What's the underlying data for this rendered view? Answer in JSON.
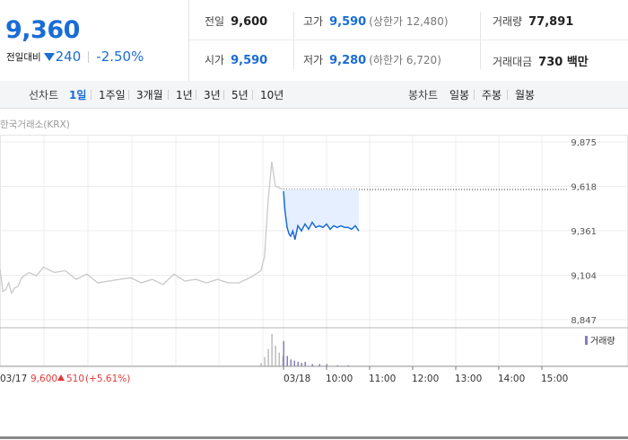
{
  "quote": {
    "price": "9,360",
    "change_label": "전일대비",
    "change_amount": "240",
    "change_rate": "-2.50%",
    "prev_close_label": "전일",
    "prev_close": "9,600",
    "high_label": "고가",
    "high": "9,590",
    "upper_limit": "(상한가 12,480)",
    "volume_label": "거래량",
    "volume": "77,891",
    "open_label": "시가",
    "open": "9,590",
    "low_label": "저가",
    "low": "9,280",
    "lower_limit": "(하한가 6,720)",
    "value_label": "거래대금",
    "value": "730 백만"
  },
  "period_bar": {
    "line_label": "선차트",
    "line_periods": [
      "1일",
      "1주일",
      "3개월",
      "1년",
      "3년",
      "5년",
      "10년"
    ],
    "active_period": "1일",
    "candle_label": "봉차트",
    "candle_periods": [
      "일봉",
      "주봉",
      "월봉"
    ]
  },
  "exchange": "한국거래소(KRX)",
  "colors": {
    "accent_blue": "#1a6cd6",
    "down": "#1a6cd6",
    "up": "#e03a3a",
    "history_line": "#c9c9c9",
    "fill": "#e6efff",
    "volume_purple": "#8a7bbf"
  },
  "chart_data": {
    "type": "line",
    "ylim": [
      8847,
      9875
    ],
    "yticks": [
      "9,875",
      "9,618",
      "9,361",
      "9,104",
      "8,847"
    ],
    "reference_line": 9600,
    "series": [
      {
        "role": "previous_day",
        "x": [
          "09:00",
          "09:04",
          "09:08",
          "09:12",
          "09:16",
          "09:20",
          "09:25",
          "09:30",
          "09:40",
          "09:50",
          "10:00",
          "10:15",
          "10:30",
          "10:45",
          "11:00",
          "11:15",
          "11:30",
          "11:45",
          "12:00",
          "12:15",
          "12:30",
          "12:45",
          "13:00",
          "13:15",
          "13:30",
          "13:45",
          "14:00",
          "14:15",
          "14:30",
          "14:45",
          "15:00",
          "15:05",
          "15:10",
          "15:15",
          "15:20",
          "15:25",
          "15:30"
        ],
        "values": [
          9140,
          9010,
          9020,
          9060,
          9000,
          9030,
          9040,
          9090,
          9120,
          9100,
          9150,
          9120,
          9130,
          9080,
          9110,
          9060,
          9070,
          9080,
          9090,
          9060,
          9080,
          9050,
          9110,
          9070,
          9080,
          9060,
          9080,
          9060,
          9060,
          9090,
          9130,
          9210,
          9530,
          9760,
          9620,
          9610,
          9600
        ]
      },
      {
        "role": "today",
        "x": [
          "09:00",
          "09:02",
          "09:05",
          "09:08",
          "09:10",
          "09:13",
          "09:16",
          "09:20",
          "09:25",
          "09:30",
          "09:35",
          "09:40",
          "09:45",
          "09:50",
          "09:55",
          "10:00",
          "10:05",
          "10:10",
          "10:15",
          "10:20",
          "10:25",
          "10:30",
          "10:35",
          "10:40",
          "10:45"
        ],
        "values": [
          9590,
          9480,
          9380,
          9340,
          9330,
          9360,
          9310,
          9390,
          9360,
          9400,
          9370,
          9410,
          9380,
          9390,
          9380,
          9400,
          9370,
          9390,
          9380,
          9390,
          9380,
          9380,
          9370,
          9390,
          9360
        ]
      }
    ],
    "volume_label": "거래량",
    "volume_x": [
      "15:00",
      "15:05",
      "15:10",
      "15:15",
      "15:20",
      "15:25",
      "15:30",
      "09:00",
      "09:05",
      "09:10",
      "09:15",
      "09:20",
      "09:25",
      "09:30",
      "09:40",
      "09:50",
      "10:00",
      "10:15",
      "10:30"
    ],
    "volume_values": [
      3,
      8,
      15,
      28,
      18,
      12,
      9,
      22,
      9,
      6,
      5,
      4,
      3,
      4,
      2,
      2,
      2,
      1,
      1
    ],
    "x_labels": [
      "03/18",
      "10:00",
      "11:00",
      "12:00",
      "13:00",
      "14:00",
      "15:00"
    ],
    "prev_summary": {
      "date": "03/17",
      "close": "9,600",
      "change": "510",
      "rate": "(+5.61%)"
    }
  }
}
